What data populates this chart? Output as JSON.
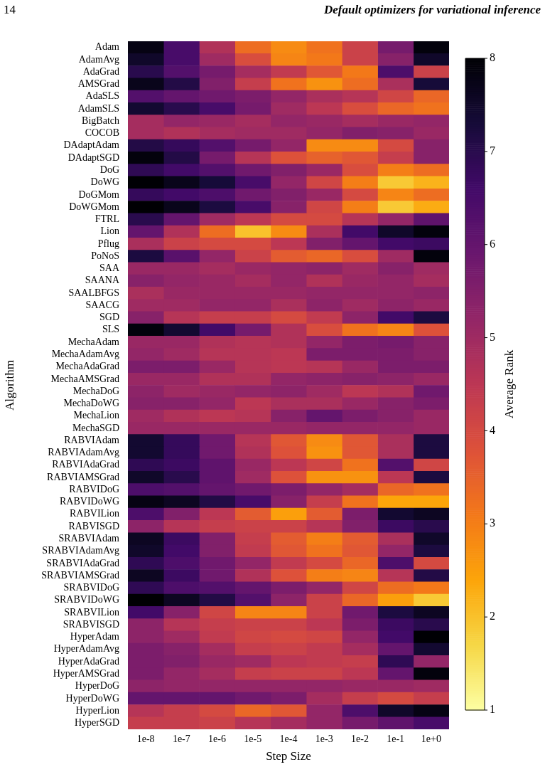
{
  "chart_data": {
    "type": "heatmap",
    "xlabel": "Step Size",
    "ylabel": "Algorithm",
    "clabel": "Average Rank",
    "annotations": [
      "14",
      "Default optimizers for variational inference"
    ],
    "categories": [
      "1e-8",
      "1e-7",
      "1e-6",
      "1e-5",
      "1e-4",
      "1e-3",
      "1e-2",
      "1e-1",
      "1e+0"
    ],
    "y_categories": [
      "Adam",
      "AdamAvg",
      "AdaGrad",
      "AMSGrad",
      "AdaSLS",
      "AdamSLS",
      "BigBatch",
      "COCOB",
      "DAdaptAdam",
      "DAdaptSGD",
      "DoG",
      "DoWG",
      "DoGMom",
      "DoWGMom",
      "FTRL",
      "Lion",
      "Pflug",
      "PoNoS",
      "SAA",
      "SAANA",
      "SAALBFGS",
      "SAACG",
      "SGD",
      "SLS",
      "MechaAdam",
      "MechaAdamAvg",
      "MechaAdaGrad",
      "MechaAMSGrad",
      "MechaDoG",
      "MechaDoWG",
      "MechaLion",
      "MechaSGD",
      "RABVIAdam",
      "RABVIAdamAvg",
      "RABVIAdaGrad",
      "RABVIAMSGrad",
      "RABVIDoG",
      "RABVIDoWG",
      "RABVILion",
      "RABVISGD",
      "SRABVIAdam",
      "SRABVIAdamAvg",
      "SRABVIAdaGrad",
      "SRABVIAMSGrad",
      "SRABVIDoG",
      "SRABVIDoWG",
      "SRABVILion",
      "SRABVISGD",
      "HyperAdam",
      "HyperAdamAvg",
      "HyperAdaGrad",
      "HyperAMSGrad",
      "HyperDoG",
      "HyperDoWG",
      "HyperLion",
      "HyperSGD"
    ],
    "cells": [
      [
        7.8,
        6.5,
        4.7,
        3.3,
        2.8,
        3.2,
        4.2,
        5.7,
        7.9
      ],
      [
        7.5,
        6.5,
        5.0,
        3.9,
        2.9,
        3.1,
        4.2,
        5.4,
        7.5
      ],
      [
        7.0,
        6.3,
        5.7,
        4.9,
        4.4,
        3.7,
        3.1,
        6.4,
        4.2
      ],
      [
        7.7,
        7.1,
        5.5,
        4.3,
        3.2,
        2.7,
        3.3,
        4.8,
        7.3
      ],
      [
        6.3,
        6.0,
        5.8,
        5.6,
        5.2,
        4.8,
        4.6,
        4.1,
        3.4
      ],
      [
        7.4,
        7.0,
        6.5,
        5.7,
        5.0,
        4.5,
        3.9,
        3.4,
        3.2
      ],
      [
        4.9,
        5.2,
        5.1,
        4.9,
        5.2,
        5.1,
        4.9,
        5.1,
        5.2
      ],
      [
        4.9,
        4.7,
        4.9,
        5.0,
        5.0,
        5.2,
        5.5,
        5.4,
        5.1
      ],
      [
        7.1,
        6.8,
        6.3,
        5.7,
        5.2,
        2.8,
        2.8,
        4.0,
        5.4
      ],
      [
        7.9,
        7.1,
        5.7,
        4.6,
        3.8,
        3.5,
        3.7,
        4.3,
        5.4
      ],
      [
        6.9,
        6.6,
        6.3,
        5.8,
        5.5,
        5.1,
        3.9,
        3.0,
        3.3
      ],
      [
        8.0,
        7.7,
        7.3,
        6.5,
        5.2,
        4.1,
        3.0,
        1.9,
        2.2
      ],
      [
        6.8,
        6.6,
        6.4,
        5.8,
        5.5,
        5.1,
        4.0,
        2.9,
        3.3
      ],
      [
        8.0,
        7.7,
        7.2,
        6.5,
        5.4,
        4.1,
        3.0,
        1.9,
        2.3
      ],
      [
        7.0,
        6.0,
        5.0,
        4.5,
        4.0,
        4.0,
        4.6,
        5.2,
        6.1
      ],
      [
        6.0,
        4.7,
        3.3,
        2.0,
        2.8,
        4.8,
        6.6,
        7.5,
        7.9
      ],
      [
        4.8,
        4.2,
        4.0,
        4.0,
        4.5,
        5.5,
        6.0,
        6.6,
        6.7
      ],
      [
        7.2,
        6.2,
        5.2,
        4.2,
        3.6,
        3.4,
        3.9,
        5.0,
        7.9
      ],
      [
        5.1,
        5.1,
        4.9,
        5.1,
        5.2,
        5.3,
        5.0,
        5.4,
        5.0
      ],
      [
        5.4,
        5.2,
        5.1,
        4.9,
        5.2,
        4.7,
        5.1,
        5.2,
        4.9
      ],
      [
        4.8,
        5.1,
        5.1,
        5.1,
        5.1,
        5.2,
        5.2,
        5.2,
        5.3
      ],
      [
        5.0,
        5.0,
        5.2,
        5.2,
        4.8,
        5.3,
        5.0,
        5.3,
        5.1
      ],
      [
        5.4,
        4.6,
        4.3,
        4.3,
        4.0,
        4.4,
        5.3,
        6.6,
        7.2
      ],
      [
        7.9,
        7.4,
        6.6,
        5.7,
        4.7,
        3.9,
        3.2,
        2.9,
        3.8
      ],
      [
        5.1,
        5.1,
        4.7,
        4.6,
        4.7,
        5.2,
        5.6,
        5.7,
        5.4
      ],
      [
        5.2,
        5.0,
        4.6,
        4.6,
        4.5,
        5.6,
        5.6,
        5.6,
        5.4
      ],
      [
        5.6,
        5.6,
        5.1,
        4.6,
        4.5,
        4.6,
        5.1,
        5.6,
        5.6
      ],
      [
        5.1,
        5.1,
        4.7,
        4.7,
        5.2,
        5.3,
        5.4,
        5.3,
        5.1
      ],
      [
        5.3,
        5.0,
        5.1,
        5.2,
        5.3,
        5.0,
        4.5,
        4.7,
        5.8
      ],
      [
        5.4,
        5.4,
        5.2,
        4.5,
        4.8,
        4.8,
        5.1,
        5.4,
        5.6
      ],
      [
        5.0,
        4.7,
        4.5,
        4.6,
        5.4,
        6.0,
        5.6,
        5.4,
        5.1
      ],
      [
        5.1,
        5.1,
        5.1,
        5.1,
        5.1,
        5.2,
        5.2,
        5.2,
        5.1
      ],
      [
        7.4,
        6.8,
        5.8,
        4.6,
        3.7,
        2.8,
        3.7,
        4.8,
        7.2
      ],
      [
        7.4,
        6.8,
        5.8,
        4.7,
        3.8,
        2.7,
        3.7,
        4.8,
        7.2
      ],
      [
        6.9,
        6.7,
        6.1,
        5.1,
        4.5,
        4.1,
        3.2,
        6.3,
        4.1
      ],
      [
        7.5,
        7.0,
        6.1,
        5.0,
        3.8,
        2.7,
        2.7,
        4.5,
        7.2
      ],
      [
        6.4,
        6.3,
        6.0,
        5.8,
        5.6,
        5.2,
        4.9,
        3.4,
        3.2
      ],
      [
        7.8,
        7.6,
        7.1,
        6.5,
        5.4,
        4.3,
        3.2,
        2.4,
        2.4
      ],
      [
        6.4,
        5.5,
        4.5,
        3.6,
        2.5,
        3.6,
        5.6,
        7.4,
        7.6
      ],
      [
        5.3,
        4.6,
        4.3,
        4.2,
        4.2,
        4.6,
        5.5,
        6.7,
        7.0
      ],
      [
        7.6,
        6.7,
        5.5,
        4.3,
        3.6,
        3.0,
        3.6,
        4.8,
        7.5
      ],
      [
        7.5,
        6.6,
        5.5,
        4.4,
        3.7,
        3.2,
        3.7,
        5.2,
        7.2
      ],
      [
        6.9,
        6.4,
        5.8,
        5.2,
        4.4,
        4.0,
        3.4,
        6.4,
        4.0
      ],
      [
        7.6,
        6.7,
        5.8,
        4.7,
        3.8,
        3.0,
        2.9,
        4.6,
        7.1
      ],
      [
        6.9,
        6.4,
        6.3,
        6.0,
        5.6,
        5.2,
        4.1,
        3.3,
        3.1
      ],
      [
        8.0,
        7.6,
        7.1,
        6.3,
        5.3,
        4.2,
        3.4,
        2.5,
        1.9
      ],
      [
        6.6,
        5.4,
        4.1,
        2.9,
        2.9,
        4.2,
        5.8,
        7.2,
        7.6
      ],
      [
        5.3,
        4.6,
        4.3,
        4.2,
        4.2,
        4.5,
        5.6,
        6.7,
        7.0
      ],
      [
        5.3,
        5.0,
        4.4,
        4.1,
        4.0,
        4.1,
        5.2,
        6.6,
        8.0
      ],
      [
        5.6,
        5.4,
        4.9,
        4.3,
        4.2,
        4.4,
        4.9,
        6.0,
        7.4
      ],
      [
        5.6,
        5.5,
        5.1,
        5.0,
        4.5,
        4.4,
        4.3,
        6.9,
        5.2
      ],
      [
        5.6,
        5.2,
        4.9,
        4.3,
        4.2,
        4.2,
        4.5,
        6.0,
        7.9
      ],
      [
        5.3,
        5.2,
        5.2,
        5.2,
        5.2,
        5.2,
        5.1,
        5.1,
        5.0
      ],
      [
        6.0,
        6.0,
        6.0,
        5.8,
        5.6,
        4.9,
        4.3,
        4.0,
        4.3
      ],
      [
        4.6,
        4.3,
        4.0,
        3.4,
        3.7,
        5.2,
        6.4,
        7.5,
        7.8
      ],
      [
        4.3,
        4.3,
        4.2,
        4.6,
        4.9,
        5.2,
        5.7,
        6.1,
        6.5
      ]
    ],
    "clim": [
      1,
      8
    ],
    "cticks": [
      1,
      2,
      3,
      4,
      5,
      6,
      7,
      8
    ]
  }
}
